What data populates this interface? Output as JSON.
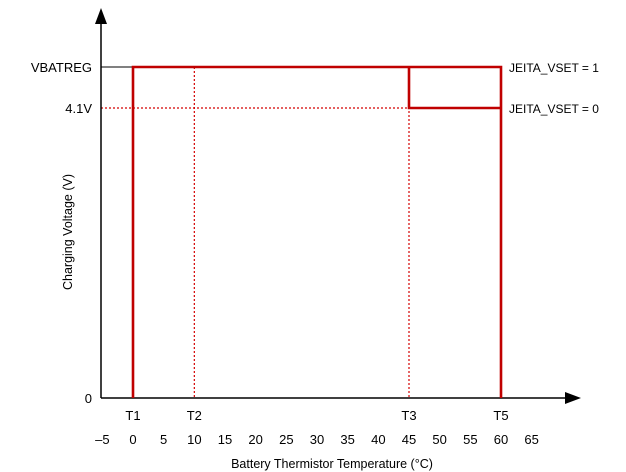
{
  "chart_data": {
    "type": "line",
    "xlabel": "Battery Thermistor Temperature (°C)",
    "ylabel": "Charging Voltage (V)",
    "x_ticks": [
      -5,
      0,
      5,
      10,
      15,
      20,
      25,
      30,
      35,
      40,
      45,
      50,
      55,
      60,
      65
    ],
    "x_tick_labels": [
      "–5",
      "0",
      "5",
      "10",
      "15",
      "20",
      "25",
      "30",
      "35",
      "40",
      "45",
      "50",
      "55",
      "60",
      "65"
    ],
    "xlim": [
      -5,
      70
    ],
    "y_levels": [
      {
        "key": "zero",
        "label": "0",
        "value": 0
      },
      {
        "key": "v41",
        "label": "4.1V",
        "value": 4.1
      },
      {
        "key": "vbatreg",
        "label": "VBATREG",
        "value": 4.2
      }
    ],
    "temperature_markers": [
      {
        "label": "T1",
        "x": 0
      },
      {
        "label": "T2",
        "x": 10
      },
      {
        "label": "T3",
        "x": 45
      },
      {
        "label": "T5",
        "x": 60
      }
    ],
    "series": [
      {
        "name": "JEITA_VSET = 1",
        "color": "#c00000",
        "points": [
          [
            0,
            0
          ],
          [
            0,
            4.2
          ],
          [
            60,
            4.2
          ],
          [
            60,
            0
          ]
        ]
      },
      {
        "name": "JEITA_VSET = 0",
        "color": "#c00000",
        "points": [
          [
            45,
            4.2
          ],
          [
            45,
            4.1
          ],
          [
            60,
            4.1
          ]
        ]
      }
    ],
    "guides": {
      "color": "#d40000",
      "style": "dotted",
      "vertical_at_x": [
        10,
        45
      ],
      "horizontal_at_y": [
        4.1
      ]
    }
  }
}
